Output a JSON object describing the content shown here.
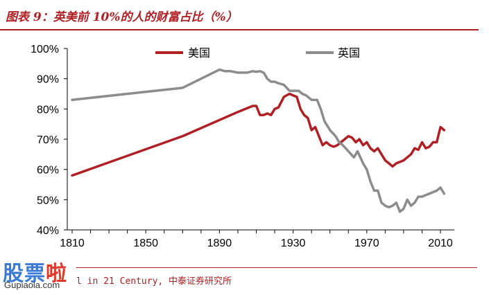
{
  "header": {
    "title": "图表 9：英美前 10%的人的财富占比（%）"
  },
  "footer": {
    "source": "l in 21 Century, 中泰证券研究所"
  },
  "watermark": {
    "main": [
      "股",
      "票",
      "啦"
    ],
    "sub": "Gupiaola.com"
  },
  "colors": {
    "us": "#b01f24",
    "uk": "#8c8c8c",
    "accent": "#b01f24"
  },
  "chart_data": {
    "type": "line",
    "title": "",
    "xlabel": "",
    "ylabel": "",
    "xlim": [
      1810,
      2014
    ],
    "ylim": [
      40,
      100
    ],
    "x_ticks": [
      "1810",
      "1850",
      "1890",
      "1930",
      "1970",
      "2010"
    ],
    "x_tick_values": [
      1810,
      1850,
      1890,
      1930,
      1970,
      2010
    ],
    "y_ticks": [
      "40%",
      "50%",
      "60%",
      "70%",
      "80%",
      "90%",
      "100%"
    ],
    "y_tick_values": [
      40,
      50,
      60,
      70,
      80,
      90,
      100
    ],
    "grid": false,
    "legend_position": "top",
    "series": [
      {
        "name": "美国",
        "color": "#b01f24",
        "x": [
          1810,
          1870,
          1900,
          1908,
          1910,
          1912,
          1914,
          1916,
          1918,
          1920,
          1922,
          1925,
          1928,
          1930,
          1932,
          1934,
          1936,
          1938,
          1940,
          1942,
          1944,
          1946,
          1948,
          1950,
          1952,
          1954,
          1956,
          1958,
          1960,
          1962,
          1964,
          1966,
          1968,
          1970,
          1972,
          1974,
          1976,
          1978,
          1980,
          1982,
          1984,
          1986,
          1988,
          1990,
          1992,
          1994,
          1996,
          1998,
          2000,
          2002,
          2004,
          2006,
          2008,
          2010,
          2012
        ],
        "y": [
          58,
          71,
          79,
          81,
          81,
          78,
          78,
          78.5,
          78,
          80,
          80.5,
          84,
          85,
          84.5,
          84,
          80,
          78,
          77,
          73,
          74,
          71,
          68,
          69,
          68,
          67.5,
          68,
          69,
          70,
          71,
          70.5,
          69,
          70,
          68,
          69,
          67,
          66,
          67,
          65,
          63,
          62,
          61,
          62,
          62.5,
          63,
          64,
          65,
          67,
          66.5,
          69,
          67,
          67.5,
          69,
          69,
          74,
          73
        ]
      },
      {
        "name": "英国",
        "color": "#8c8c8c",
        "x": [
          1810,
          1870,
          1890,
          1893,
          1896,
          1900,
          1905,
          1908,
          1910,
          1912,
          1914,
          1916,
          1918,
          1920,
          1922,
          1925,
          1928,
          1930,
          1933,
          1935,
          1937,
          1940,
          1943,
          1945,
          1947,
          1950,
          1953,
          1955,
          1957,
          1960,
          1963,
          1965,
          1968,
          1970,
          1972,
          1974,
          1976,
          1978,
          1980,
          1982,
          1984,
          1986,
          1988,
          1990,
          1992,
          1994,
          1996,
          1998,
          2000,
          2002,
          2004,
          2006,
          2008,
          2010,
          2012
        ],
        "y": [
          83,
          87,
          93,
          92.5,
          92.5,
          92,
          92,
          92.5,
          92.3,
          92.5,
          92,
          90,
          89,
          89,
          88.5,
          88,
          86,
          86,
          86,
          85,
          84.5,
          83,
          83,
          80,
          76,
          73,
          71,
          69,
          68,
          66,
          64,
          66,
          62,
          60,
          56,
          53,
          53,
          49,
          48,
          47.5,
          48,
          49,
          46,
          47,
          50,
          48,
          49,
          51,
          51,
          51.5,
          52,
          52.5,
          53,
          54,
          52
        ]
      }
    ]
  }
}
